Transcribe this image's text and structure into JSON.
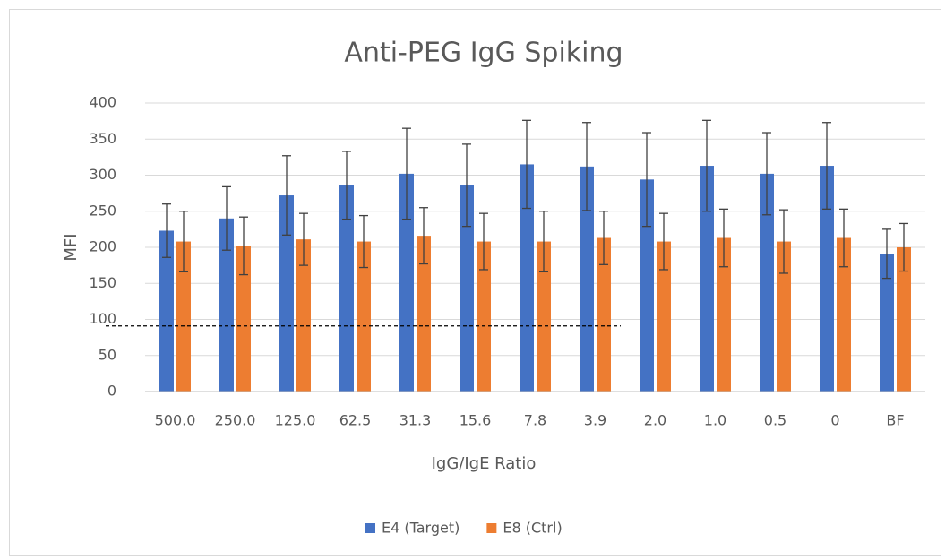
{
  "chart_data": {
    "type": "bar",
    "title": "Anti-PEG IgG Spiking",
    "x_label": "IgG/IgE Ratio",
    "y_label": "MFI",
    "categories": [
      "500.0",
      "250.0",
      "125.0",
      "62.5",
      "31.3",
      "15.6",
      "7.8",
      "3.9",
      "2.0",
      "1.0",
      "0.5",
      "0",
      "BF"
    ],
    "series": [
      {
        "name": "E4 (Target)",
        "color": "#4472c4",
        "values": [
          223,
          240,
          272,
          286,
          302,
          286,
          315,
          312,
          294,
          313,
          302,
          313,
          191
        ],
        "errors": [
          37,
          44,
          55,
          47,
          63,
          57,
          61,
          61,
          65,
          63,
          57,
          60,
          34
        ]
      },
      {
        "name": "E8 (Ctrl)",
        "color": "#ed7d31",
        "values": [
          208,
          202,
          211,
          208,
          216,
          208,
          208,
          213,
          208,
          213,
          208,
          213,
          200
        ],
        "errors": [
          42,
          40,
          36,
          36,
          39,
          39,
          42,
          37,
          39,
          40,
          44,
          40,
          33
        ]
      }
    ],
    "reference_line": {
      "value": 91
    },
    "ylim": [
      0,
      400
    ],
    "yticks": [
      0,
      50,
      100,
      150,
      200,
      250,
      300,
      350,
      400
    ],
    "grid": true,
    "legend": "bottom"
  }
}
